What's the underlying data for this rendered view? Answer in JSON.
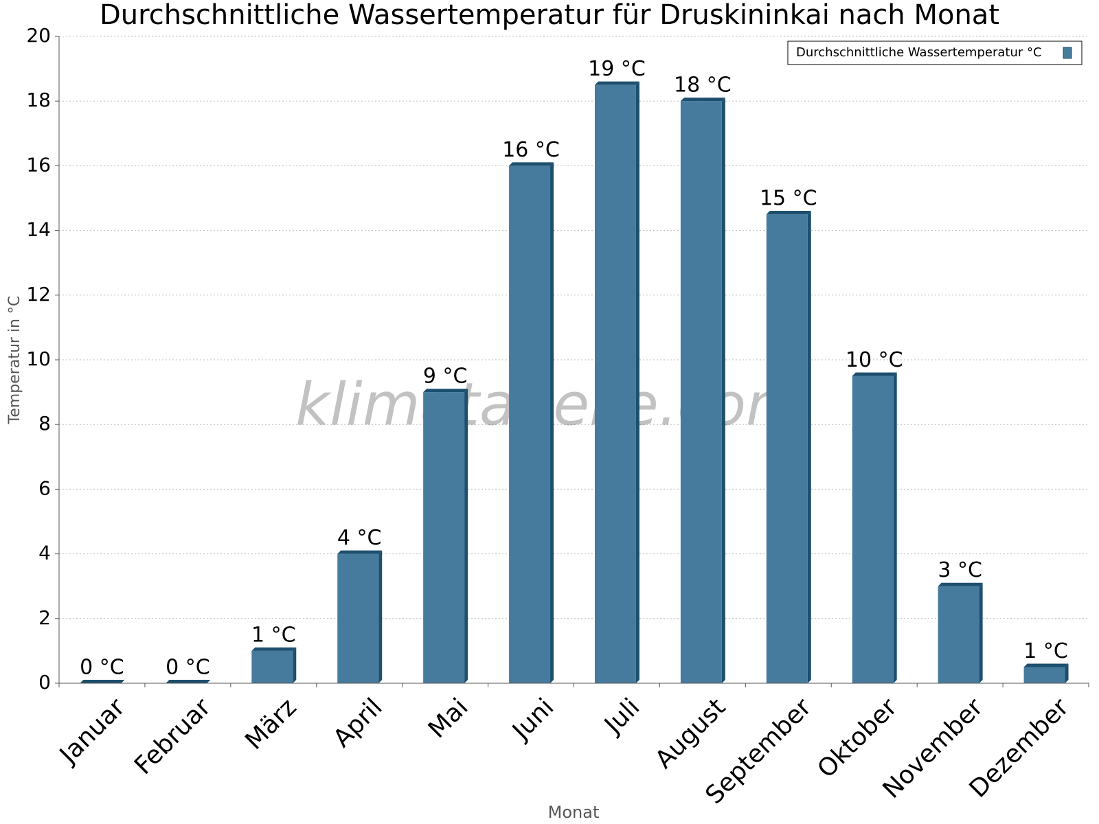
{
  "chart_data": {
    "type": "bar",
    "title": "Durchschnittliche Wassertemperatur für Druskininkai nach Monat",
    "x_label": "Monat",
    "y_label": "Temperatur in °C",
    "watermark": "klimatabelle.com",
    "categories": [
      "Januar",
      "Februar",
      "März",
      "April",
      "Mai",
      "Juni",
      "Juli",
      "August",
      "September",
      "Oktober",
      "November",
      "Dezember"
    ],
    "series": [
      {
        "name": "Durchschnittliche Wassertemperatur °C",
        "color": "#467b9d",
        "values": [
          0,
          0,
          1,
          4,
          9,
          16,
          18.5,
          18,
          14.5,
          9.5,
          3,
          0.5
        ],
        "value_labels": [
          "0 °C",
          "0 °C",
          "1 °C",
          "4 °C",
          "9 °C",
          "16 °C",
          "19 °C",
          "18 °C",
          "15 °C",
          "10 °C",
          "3 °C",
          "1 °C"
        ]
      }
    ],
    "ylim": [
      0,
      20
    ],
    "yticks": [
      0,
      2,
      4,
      6,
      8,
      10,
      12,
      14,
      16,
      18,
      20
    ],
    "grid": true,
    "legend": "top-right"
  }
}
